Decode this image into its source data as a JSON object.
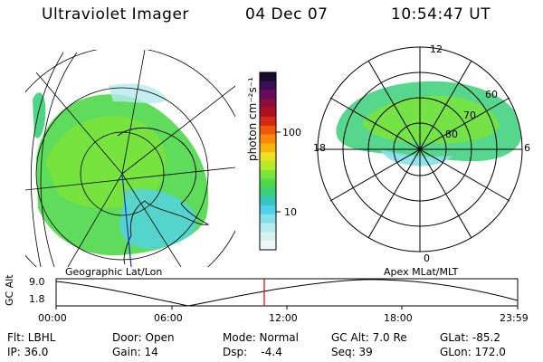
{
  "header": {
    "instrument": "Ultraviolet Imager",
    "date": "04 Dec 07",
    "time": "10:54:47 UT"
  },
  "colorbar": {
    "unit_label": "photon cm⁻²s⁻¹",
    "ticks": [
      "100",
      "10"
    ],
    "colors": [
      "#1a0a2e",
      "#3a0f57",
      "#6a0c5e",
      "#8f0f3a",
      "#b00f1e",
      "#d42a12",
      "#ee5a0c",
      "#f7880a",
      "#f7b20e",
      "#e8e020",
      "#b8ea2a",
      "#7ae43a",
      "#4fd84a",
      "#3ad07a",
      "#39c6c0",
      "#52d2e8",
      "#86e0ea",
      "#b6eaee",
      "#d8f2f2",
      "#eef8f8"
    ]
  },
  "geographic_panel": {
    "label": "Geographic Lat/Lon"
  },
  "apex_panel": {
    "label": "Apex MLat/MLT",
    "mlt_labels": {
      "top": "12",
      "left": "18",
      "right": "6",
      "bottom": "0"
    },
    "mlat_labels": [
      "60",
      "70",
      "80"
    ]
  },
  "altitude_plot": {
    "y_label": "GC Alt",
    "y_ticks": [
      "9.0",
      "1.8"
    ],
    "x_ticks": [
      "00:00",
      "06:00",
      "12:00",
      "18:00",
      "23:59"
    ],
    "marker_color": "#e00000"
  },
  "info": {
    "flt": "Flt: LBHL",
    "ip": "IP: 36.0",
    "door": "Door: Open",
    "gain": "Gain: 14",
    "mode": "Mode: Normal",
    "dsp": "Dsp:    -4.4",
    "gc_alt": "GC Alt: 7.0 Re",
    "seq": "Seq: 39",
    "glat": "GLat: -85.2",
    "glon": "GLon: 172.0"
  }
}
